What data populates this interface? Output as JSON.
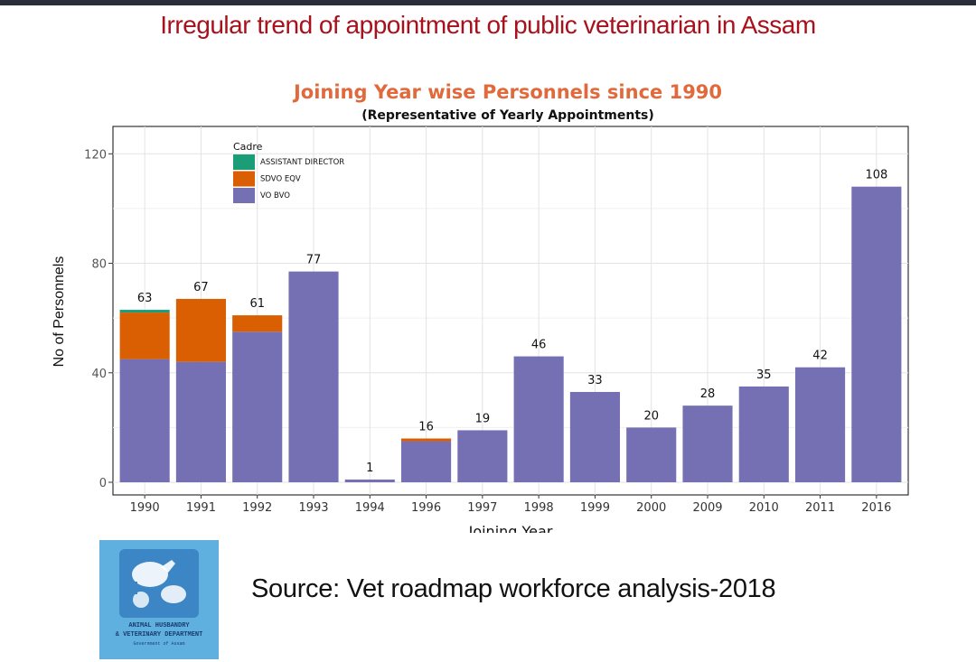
{
  "slide": {
    "title": "Irregular trend of appointment of public veterinarian in Assam",
    "source": "Source: Vet roadmap workforce analysis-2018",
    "logo_text": [
      "ANIMAL HUSBANDRY",
      "& VETERINARY DEPARTMENT",
      "Government of Assam"
    ]
  },
  "colors": {
    "title": "#a8111c",
    "chart_title": "#e06a3c",
    "assistant_director": "#1b9e77",
    "sdvo_eqv": "#d95f02",
    "vo_bvo": "#7570b3",
    "logo_bg": "#5fb0df"
  },
  "chart_data": {
    "type": "bar",
    "stacked": true,
    "title": "Joining Year wise Personnels since 1990",
    "subtitle": "(Representative of Yearly Appointments)",
    "xlabel": "Joining Year",
    "ylabel": "No of Personnels",
    "ylim": [
      0,
      130
    ],
    "yticks": [
      0,
      40,
      80,
      120
    ],
    "grid": true,
    "legend_title": "Cadre",
    "legend_position": "top-left",
    "categories": [
      "1990",
      "1991",
      "1992",
      "1993",
      "1994",
      "1996",
      "1997",
      "1998",
      "1999",
      "2000",
      "2009",
      "2010",
      "2011",
      "2016"
    ],
    "series": [
      {
        "name": "VO BVO",
        "color": "#7570b3",
        "values": [
          45,
          44,
          55,
          77,
          1,
          15,
          19,
          46,
          33,
          20,
          28,
          35,
          42,
          108
        ]
      },
      {
        "name": "SDVO EQV",
        "color": "#d95f02",
        "values": [
          17,
          23,
          6,
          0,
          0,
          1,
          0,
          0,
          0,
          0,
          0,
          0,
          0,
          0
        ]
      },
      {
        "name": "ASSISTANT DIRECTOR",
        "color": "#1b9e77",
        "values": [
          1,
          0,
          0,
          0,
          0,
          0,
          0,
          0,
          0,
          0,
          0,
          0,
          0,
          0
        ]
      }
    ],
    "totals": [
      63,
      67,
      61,
      77,
      1,
      16,
      19,
      46,
      33,
      20,
      28,
      35,
      42,
      108
    ]
  }
}
